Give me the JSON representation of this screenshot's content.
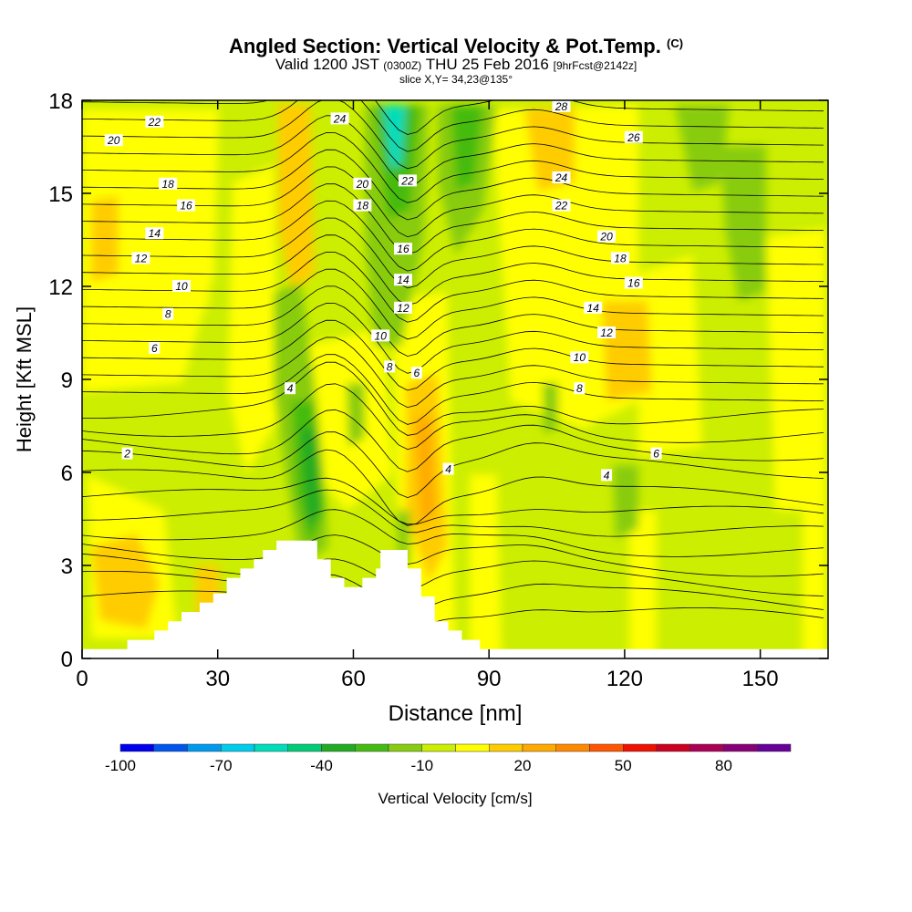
{
  "header": {
    "title_main": "Angled Section: Vertical Velocity & Pot.Temp.",
    "title_unit": "(C)",
    "valid_prefix": "Valid 1200 JST",
    "valid_utc": "(0300Z)",
    "valid_date": "THU 25 Feb 2016",
    "forecast_tag": "[9hrFcst@2142z]",
    "slice": "slice X,Y= 34,23@135°"
  },
  "chart_data": {
    "type": "heatmap",
    "xlabel": "Distance [nm]",
    "ylabel": "Height [Kft MSL]",
    "xlim": [
      0,
      165
    ],
    "ylim": [
      0,
      18
    ],
    "x_ticks": [
      0,
      30,
      60,
      90,
      120,
      150
    ],
    "y_ticks": [
      0,
      3,
      6,
      9,
      12,
      15,
      18
    ],
    "colorbar": {
      "label": "Vertical Velocity [cm/s]",
      "range": [
        -100,
        100
      ],
      "tick_values": [
        -100,
        -70,
        -40,
        -10,
        20,
        50,
        80
      ],
      "tick_labels": [
        "-100",
        "-70",
        "-40",
        "-10",
        "20",
        "50",
        "80"
      ],
      "colors": [
        "#0000ee",
        "#0055ee",
        "#0099ee",
        "#00ccee",
        "#00ddbb",
        "#00cc77",
        "#22aa22",
        "#44bb11",
        "#88cc11",
        "#ccee00",
        "#ffff00",
        "#ffcc00",
        "#ffaa00",
        "#ff8800",
        "#ff5500",
        "#ee1100",
        "#cc0022",
        "#aa0055",
        "#880077",
        "#660099"
      ]
    },
    "terrain_height": [
      [
        0,
        0.3
      ],
      [
        10,
        0.3
      ],
      [
        10,
        0.6
      ],
      [
        16,
        0.6
      ],
      [
        16,
        0.9
      ],
      [
        19,
        0.9
      ],
      [
        19,
        1.2
      ],
      [
        22,
        1.2
      ],
      [
        22,
        1.5
      ],
      [
        26,
        1.5
      ],
      [
        26,
        1.8
      ],
      [
        29,
        1.8
      ],
      [
        29,
        2.1
      ],
      [
        32,
        2.1
      ],
      [
        32,
        2.6
      ],
      [
        35,
        2.6
      ],
      [
        35,
        2.9
      ],
      [
        38,
        2.9
      ],
      [
        38,
        3.2
      ],
      [
        40,
        3.2
      ],
      [
        40,
        3.5
      ],
      [
        43,
        3.5
      ],
      [
        43,
        3.8
      ],
      [
        52,
        3.8
      ],
      [
        52,
        3.2
      ],
      [
        55,
        3.2
      ],
      [
        55,
        2.6
      ],
      [
        58,
        2.6
      ],
      [
        58,
        2.3
      ],
      [
        62,
        2.3
      ],
      [
        62,
        2.6
      ],
      [
        65,
        2.6
      ],
      [
        65,
        2.9
      ],
      [
        66,
        2.9
      ],
      [
        66,
        3.5
      ],
      [
        72,
        3.5
      ],
      [
        72,
        2.9
      ],
      [
        75,
        2.9
      ],
      [
        75,
        2.0
      ],
      [
        78,
        2.0
      ],
      [
        78,
        1.2
      ],
      [
        81,
        1.2
      ],
      [
        81,
        0.9
      ],
      [
        84,
        0.9
      ],
      [
        84,
        0.6
      ],
      [
        88,
        0.6
      ],
      [
        88,
        0.3
      ],
      [
        165,
        0.3
      ]
    ],
    "pot_temp_labels": [
      {
        "x": 10,
        "y": 6.6,
        "label": "2"
      },
      {
        "x": 16,
        "y": 10.0,
        "label": "6"
      },
      {
        "x": 19,
        "y": 11.1,
        "label": "8"
      },
      {
        "x": 22,
        "y": 12.0,
        "label": "10"
      },
      {
        "x": 13,
        "y": 12.9,
        "label": "12"
      },
      {
        "x": 16,
        "y": 13.7,
        "label": "14"
      },
      {
        "x": 23,
        "y": 14.6,
        "label": "16"
      },
      {
        "x": 19,
        "y": 15.3,
        "label": "18"
      },
      {
        "x": 7,
        "y": 16.7,
        "label": "20"
      },
      {
        "x": 16,
        "y": 17.3,
        "label": "22"
      },
      {
        "x": 46,
        "y": 8.7,
        "label": "4"
      },
      {
        "x": 57,
        "y": 17.4,
        "label": "24"
      },
      {
        "x": 62,
        "y": 15.3,
        "label": "20"
      },
      {
        "x": 62,
        "y": 14.6,
        "label": "18"
      },
      {
        "x": 72,
        "y": 15.4,
        "label": "22"
      },
      {
        "x": 71,
        "y": 13.2,
        "label": "16"
      },
      {
        "x": 71,
        "y": 12.2,
        "label": "14"
      },
      {
        "x": 71,
        "y": 11.3,
        "label": "12"
      },
      {
        "x": 66,
        "y": 10.4,
        "label": "10"
      },
      {
        "x": 68,
        "y": 9.4,
        "label": "8"
      },
      {
        "x": 74,
        "y": 9.2,
        "label": "6"
      },
      {
        "x": 81,
        "y": 6.1,
        "label": "4"
      },
      {
        "x": 106,
        "y": 17.8,
        "label": "28"
      },
      {
        "x": 122,
        "y": 16.8,
        "label": "26"
      },
      {
        "x": 106,
        "y": 15.5,
        "label": "24"
      },
      {
        "x": 106,
        "y": 14.6,
        "label": "22"
      },
      {
        "x": 116,
        "y": 13.6,
        "label": "20"
      },
      {
        "x": 119,
        "y": 12.9,
        "label": "18"
      },
      {
        "x": 122,
        "y": 12.1,
        "label": "16"
      },
      {
        "x": 113,
        "y": 11.3,
        "label": "14"
      },
      {
        "x": 116,
        "y": 10.5,
        "label": "12"
      },
      {
        "x": 110,
        "y": 9.7,
        "label": "10"
      },
      {
        "x": 110,
        "y": 8.7,
        "label": "8"
      },
      {
        "x": 127,
        "y": 6.6,
        "label": "6"
      },
      {
        "x": 116,
        "y": 5.9,
        "label": "4"
      }
    ]
  }
}
